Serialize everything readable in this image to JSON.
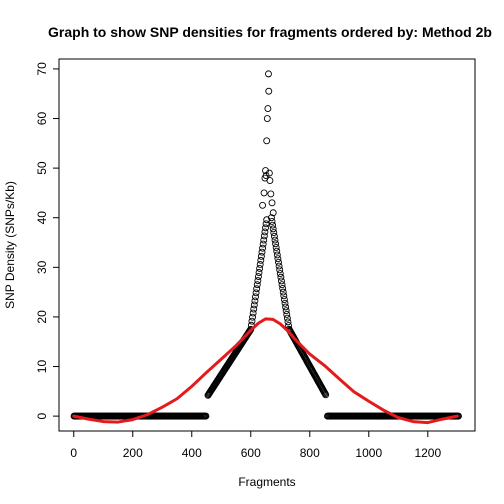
{
  "chart_data": {
    "type": "scatter",
    "title": "Graph to show SNP densities for fragments ordered by: Method 2b",
    "xlabel": "Fragments",
    "ylabel": "SNP Density (SNPs/Kb)",
    "xlim": [
      -50,
      1360
    ],
    "ylim": [
      -3,
      72
    ],
    "xticks": [
      0,
      200,
      400,
      600,
      800,
      1000,
      1200
    ],
    "yticks": [
      0,
      10,
      20,
      30,
      40,
      50,
      60,
      70
    ],
    "grid": false,
    "colors": {
      "points": "#000000",
      "smooth_line": "#e41a1c"
    },
    "series": [
      {
        "kind": "points",
        "segments": [
          {
            "x_from": 1,
            "x_to": 450,
            "y": 0
          },
          {
            "x_from": 455,
            "x_to": 600,
            "y_from": 4.2,
            "y_to": 17.5
          },
          {
            "x_from": 600,
            "x_to": 655,
            "y_from": 17.5,
            "y_to": 40
          },
          {
            "x_from": 670,
            "x_to": 730,
            "y_from": 40,
            "y_to": 17.5
          },
          {
            "x_from": 730,
            "x_to": 855,
            "y_from": 17.5,
            "y_to": 4.2
          },
          {
            "x_from": 860,
            "x_to": 1305,
            "y": 0
          }
        ],
        "extra_points": [
          [
            640,
            42.5
          ],
          [
            645,
            45
          ],
          [
            648,
            48
          ],
          [
            650,
            49.5
          ],
          [
            652,
            48.5
          ],
          [
            654,
            55.5
          ],
          [
            656,
            60
          ],
          [
            658,
            62
          ],
          [
            660,
            69
          ],
          [
            661,
            65.5
          ],
          [
            663,
            49
          ],
          [
            665,
            47.5
          ],
          [
            668,
            44.8
          ],
          [
            672,
            43
          ],
          [
            676,
            41
          ]
        ]
      },
      {
        "kind": "smooth-line",
        "x": [
          0,
          50,
          100,
          150,
          200,
          250,
          300,
          350,
          400,
          450,
          500,
          550,
          600,
          625,
          650,
          675,
          700,
          725,
          750,
          800,
          850,
          900,
          950,
          1000,
          1050,
          1100,
          1150,
          1200,
          1250,
          1300
        ],
        "y": [
          0,
          -0.6,
          -1.1,
          -1.2,
          -0.7,
          0.3,
          1.8,
          3.5,
          6,
          8.8,
          11.5,
          14.2,
          17.3,
          18.7,
          19.6,
          19.5,
          18.6,
          17.2,
          15.5,
          12.5,
          10.2,
          7.5,
          4.9,
          3,
          1.2,
          -0.3,
          -1.1,
          -1.3,
          -0.6,
          0
        ]
      }
    ]
  }
}
